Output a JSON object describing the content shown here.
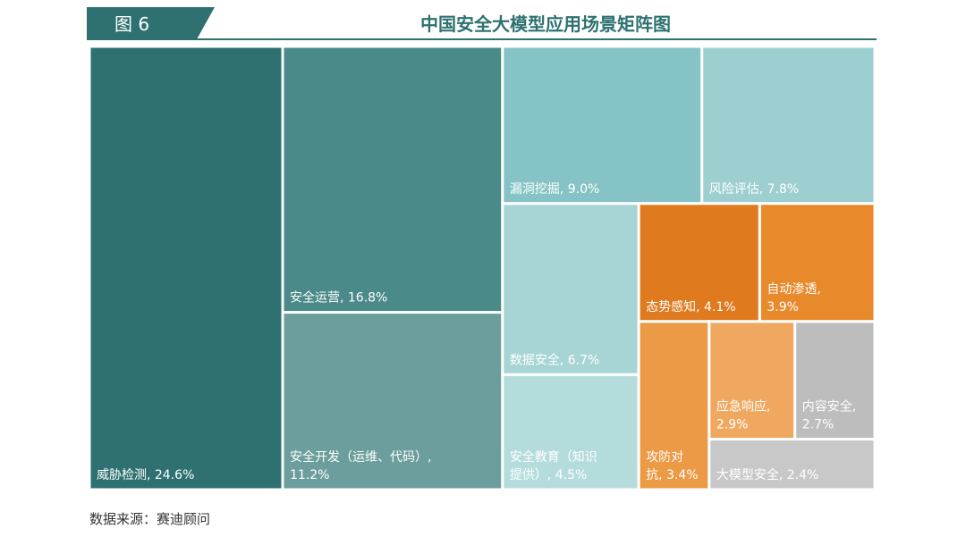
{
  "chart_data": {
    "type": "treemap",
    "figure_label": "图 6",
    "title": "中国安全大模型应用场景矩阵图",
    "source": "数据来源：赛迪顾问",
    "labels": [
      [
        "威胁检测, 24.6%"
      ],
      [
        "安全运营, 16.8%"
      ],
      [
        "安全开发（运维、代码）,",
        "11.2%"
      ],
      [
        "漏洞挖掘, 9.0%"
      ],
      [
        "风险评估, 7.8%"
      ],
      [
        "数据安全, 6.7%"
      ],
      [
        "安全教育（知识",
        "提供）, 4.5%"
      ],
      [
        "态势感知, 4.1%"
      ],
      [
        "自动渗透,",
        "3.9%"
      ],
      [
        "攻防对",
        "抗, 3.4%"
      ],
      [
        "应急响应,",
        "2.9%"
      ],
      [
        "内容安全,",
        "2.7%"
      ],
      [
        "大模型安全, 2.4%"
      ]
    ],
    "values": [
      24.6,
      16.8,
      11.2,
      9.0,
      7.8,
      6.7,
      4.5,
      4.1,
      3.9,
      3.4,
      2.9,
      2.7,
      2.4
    ],
    "colors": [
      "#2e7170",
      "#4a8a88",
      "#6b9e9d",
      "#86c3c6",
      "#9dcfd1",
      "#a7d5d6",
      "#b5dcdd",
      "#e07a1e",
      "#e88a2c",
      "#ec9a45",
      "#f0a860",
      "#bdbdbd",
      "#c8c8c8"
    ]
  }
}
